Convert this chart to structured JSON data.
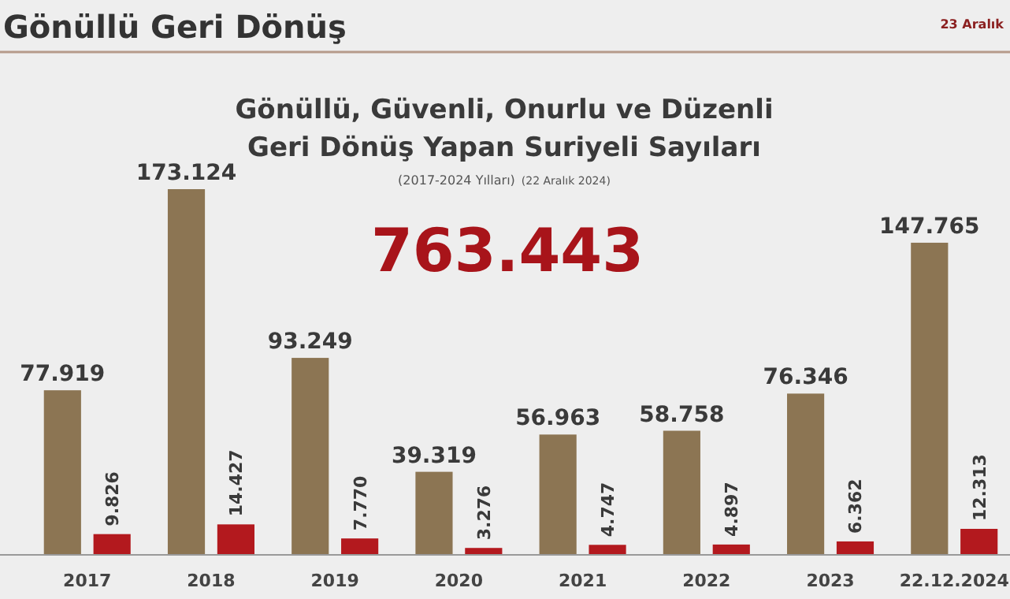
{
  "chart_data": {
    "type": "bar",
    "title": "Gönüllü Geri Dönüş",
    "subtitle": "Gönüllü, Güvenli, Onurlu ve Düzenli\nGeri Dönüş Yapan Suriyeli Sayıları",
    "annotations": [
      "(2017-2024 Yılları)",
      "(22 Aralık 2024)",
      "763.443",
      "23 Aralık"
    ],
    "categories": [
      "2017",
      "2018",
      "2019",
      "2020",
      "2021",
      "2022",
      "2023",
      "22.12.2024"
    ],
    "series": [
      {
        "color": "#8c7553",
        "values": [
          77919,
          173124,
          93249,
          39319,
          56963,
          58758,
          76346,
          147765
        ],
        "value_labels": [
          "77.919",
          "173.124",
          "93.249",
          "39.319",
          "56.963",
          "58.758",
          "76.346",
          "147.765"
        ]
      },
      {
        "color": "#b3191e",
        "values": [
          9826,
          14427,
          7770,
          3276,
          4747,
          4897,
          6362,
          12313
        ],
        "value_labels": [
          "9.826",
          "14.427",
          "7.770",
          "3.276",
          "4.747",
          "4.897",
          "6.362",
          "12.313"
        ]
      }
    ]
  }
}
